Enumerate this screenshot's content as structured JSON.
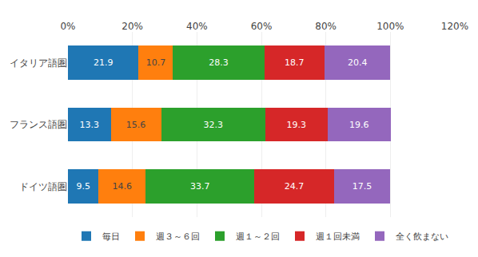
{
  "chart_data": {
    "type": "bar",
    "orientation": "horizontal",
    "stacked": true,
    "categories": [
      "ドイツ語圏",
      "フランス語圏",
      "イタリア語圏"
    ],
    "series": [
      {
        "name": "毎日",
        "values": [
          9.5,
          13.3,
          21.9
        ]
      },
      {
        "name": "週３～６回",
        "values": [
          14.6,
          15.6,
          10.7
        ]
      },
      {
        "name": "週１～２回",
        "values": [
          33.7,
          32.3,
          28.3
        ]
      },
      {
        "name": "週１回未満",
        "values": [
          24.7,
          19.3,
          18.7
        ]
      },
      {
        "name": "全く飲まない",
        "values": [
          17.5,
          19.6,
          20.4
        ]
      }
    ],
    "xlim": [
      0,
      120
    ],
    "xticks": [
      {
        "value": 0,
        "label": "0%"
      },
      {
        "value": 20,
        "label": "20%"
      },
      {
        "value": 40,
        "label": "40%"
      },
      {
        "value": 60,
        "label": "60%"
      },
      {
        "value": 80,
        "label": "80%"
      },
      {
        "value": 100,
        "label": "100%"
      },
      {
        "value": 120,
        "label": "120%"
      }
    ],
    "grid": true,
    "data_labels": true,
    "legend": "bottom"
  }
}
